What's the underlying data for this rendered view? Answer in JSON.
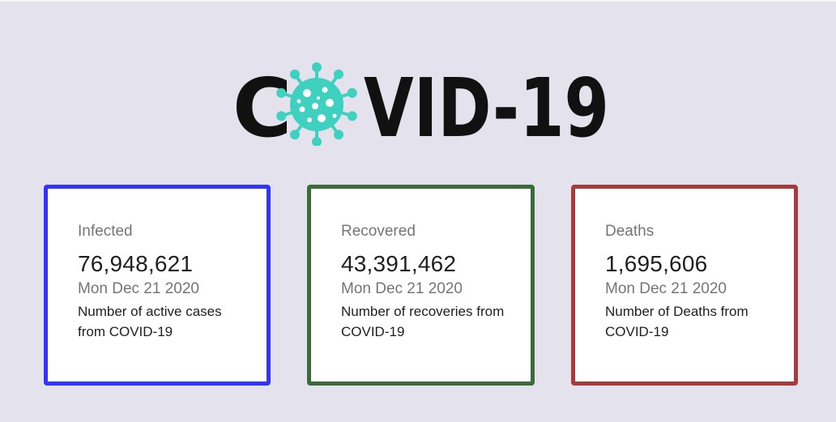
{
  "header": {
    "logo_text_left": "C",
    "logo_text_right": "VID-19",
    "logo_icon": "virus-icon",
    "logo_icon_color": "#3fd1c0"
  },
  "cards": [
    {
      "title": "Infected",
      "value": "76,948,621",
      "date": "Mon Dec 21 2020",
      "description": "Number of active cases from COVID-19",
      "border_color": "#3333ff"
    },
    {
      "title": "Recovered",
      "value": "43,391,462",
      "date": "Mon Dec 21 2020",
      "description": "Number of recoveries from COVID-19",
      "border_color": "#3b6b3a"
    },
    {
      "title": "Deaths",
      "value": "1,695,606",
      "date": "Mon Dec 21 2020",
      "description": "Number of Deaths from COVID-19",
      "border_color": "#a53b3b"
    }
  ]
}
